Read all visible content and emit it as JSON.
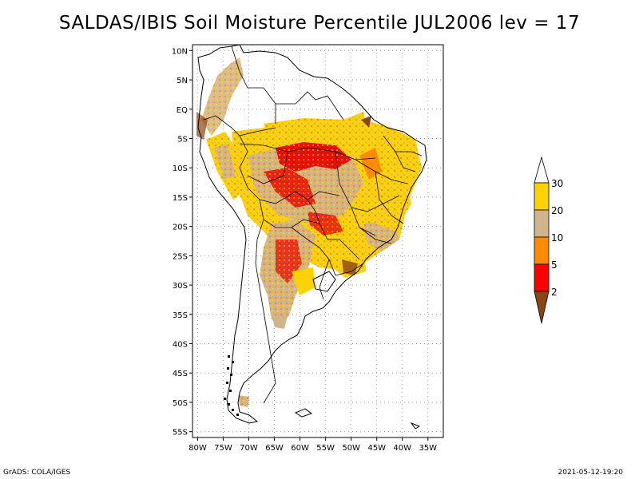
{
  "title": "SALDAS/IBIS Soil Moisture Percentile JUL2006 lev = 17",
  "map": {
    "lat_labels": [
      "10N",
      "5N",
      "EQ",
      "5S",
      "10S",
      "15S",
      "20S",
      "25S",
      "30S",
      "35S",
      "40S",
      "45S",
      "50S",
      "55S"
    ],
    "lon_labels": [
      "80W",
      "75W",
      "70W",
      "65W",
      "60W",
      "55W",
      "50W",
      "45W",
      "40W",
      "35W"
    ],
    "lat_range": [
      -56,
      11
    ],
    "lon_range": [
      -81,
      -32
    ],
    "grid": "dotted"
  },
  "legend": {
    "levels": [
      "30",
      "20",
      "10",
      "5",
      "2"
    ],
    "colors": {
      "above_30": "#ffffff",
      "20_30": "#fdd201",
      "10_20": "#d2b48c",
      "5_10": "#ff8c00",
      "2_5": "#fe0000",
      "below_2": "#8b4513"
    }
  },
  "footer": {
    "left": "GrADS: COLA/IGES",
    "right": "2021-05-12-19:20"
  }
}
